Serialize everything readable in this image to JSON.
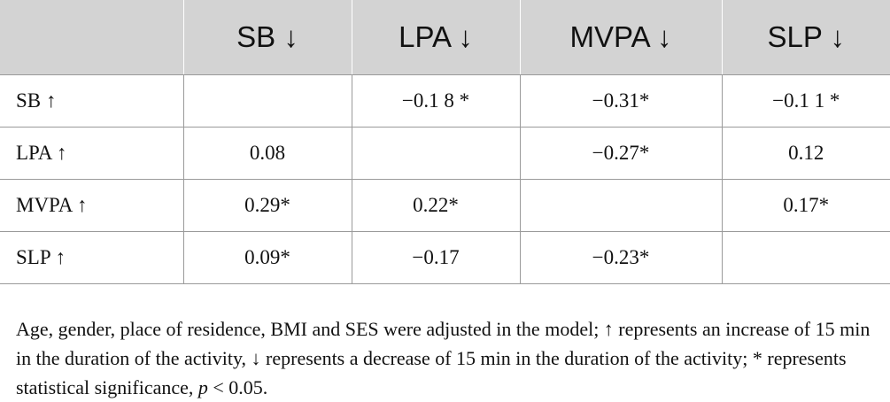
{
  "table": {
    "columns": [
      "",
      "SB ↓",
      "LPA ↓",
      "MVPA ↓",
      "SLP ↓"
    ],
    "rows": [
      {
        "label": "SB ↑",
        "cells": [
          "",
          "−0.1 8 *",
          "−0.31*",
          "−0.1 1 *"
        ]
      },
      {
        "label": "LPA ↑",
        "cells": [
          "0.08",
          "",
          "−0.27*",
          "0.12"
        ]
      },
      {
        "label": "MVPA ↑",
        "cells": [
          "0.29*",
          "0.22*",
          "",
          "0.17*"
        ]
      },
      {
        "label": "SLP ↑",
        "cells": [
          "0.09*",
          "−0.17",
          "−0.23*",
          ""
        ]
      }
    ]
  },
  "footnote": {
    "text": "Age, gender, place of residence, BMI and SES were adjusted in the model; ↑ represents an increase of 15 min in the duration of the activity, ↓ represents a decrease of 15 min in the duration of the activity; * represents statistical significance, ",
    "p_symbol": "p",
    "p_value": " < 0.05."
  },
  "colors": {
    "header_bg": "#d3d3d3",
    "grid_line": "#9a9a9a",
    "text": "#111111"
  }
}
